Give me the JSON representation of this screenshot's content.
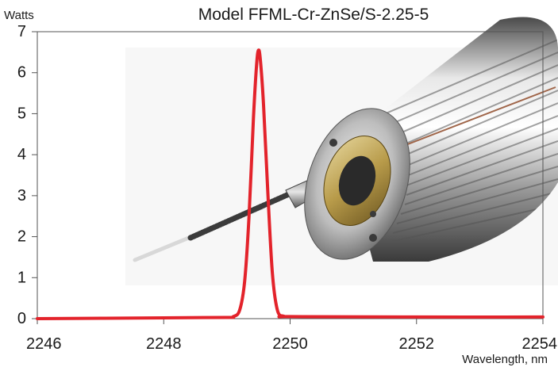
{
  "chart_data": {
    "type": "line",
    "title": "Model FFML-Cr-ZnSe/S-2.25-5",
    "xlabel": "Wavelength, nm",
    "ylabel": "Watts",
    "xlim": [
      2246,
      2254
    ],
    "ylim": [
      0,
      7
    ],
    "xticks": [
      2246,
      2248,
      2250,
      2252,
      2254
    ],
    "yticks": [
      0,
      1,
      2,
      3,
      4,
      5,
      6,
      7
    ],
    "grid": false,
    "legend": "none",
    "line_color": "#e3232b",
    "series": [
      {
        "x": [
          2246,
          2248,
          2249,
          2249.1,
          2249.2,
          2249.28,
          2249.35,
          2249.42,
          2249.47,
          2249.5,
          2249.53,
          2249.58,
          2249.65,
          2249.72,
          2249.8,
          2249.9,
          2250,
          2252,
          2254
        ],
        "values": [
          0,
          0.02,
          0.03,
          0.05,
          0.2,
          0.9,
          2.5,
          4.9,
          6.2,
          6.55,
          6.3,
          5.2,
          3.0,
          1.1,
          0.2,
          0.06,
          0.05,
          0.04,
          0.04
        ]
      }
    ]
  },
  "image": {
    "description_icon": "laser-module-photo"
  }
}
